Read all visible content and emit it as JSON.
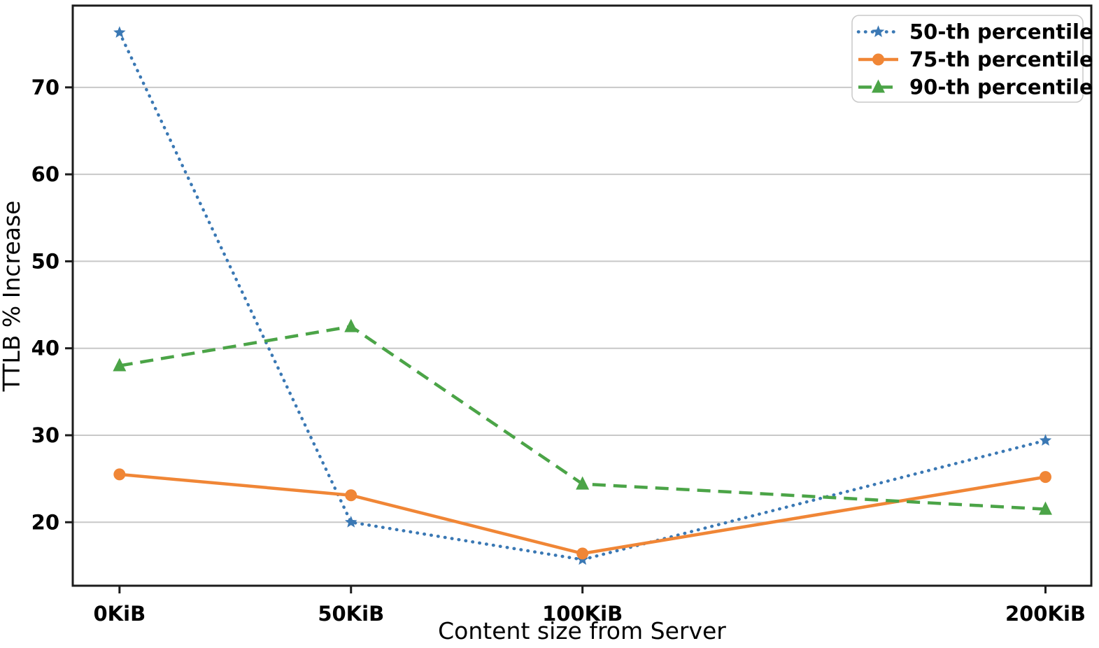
{
  "chart_data": {
    "type": "line",
    "title": "",
    "xlabel": "Content size from Server",
    "ylabel": "TTLB % Increase",
    "x": [
      0,
      50,
      100,
      200
    ],
    "x_tick_labels": [
      "0KiB",
      "50KiB",
      "100KiB",
      "200KiB"
    ],
    "y_ticks": [
      20,
      30,
      40,
      50,
      60,
      70
    ],
    "xlim": [
      -10.1,
      209.9
    ],
    "ylim": [
      12.7,
      79.4
    ],
    "grid": "horizontal-only",
    "legend_position": "upper-right",
    "series": [
      {
        "name": "50-th percentile",
        "values": [
          76.3,
          20.0,
          15.7,
          29.4
        ],
        "color": "#3a78b4",
        "line_style": "dotted",
        "marker": "star"
      },
      {
        "name": "75-th percentile",
        "values": [
          25.5,
          23.1,
          16.4,
          25.2
        ],
        "color": "#f08636",
        "line_style": "solid",
        "marker": "circle"
      },
      {
        "name": "90-th percentile",
        "values": [
          38.0,
          42.5,
          24.4,
          21.5
        ],
        "color": "#4ba447",
        "line_style": "dashed",
        "marker": "triangle"
      }
    ],
    "colors": {
      "background": "#ffffff",
      "grid": "#c8c8c8",
      "spine": "#1c1c1c",
      "tick": "#1c1c1c",
      "text": "#000000",
      "legend_border": "#c9c9c9",
      "legend_background": "#ffffff"
    }
  }
}
